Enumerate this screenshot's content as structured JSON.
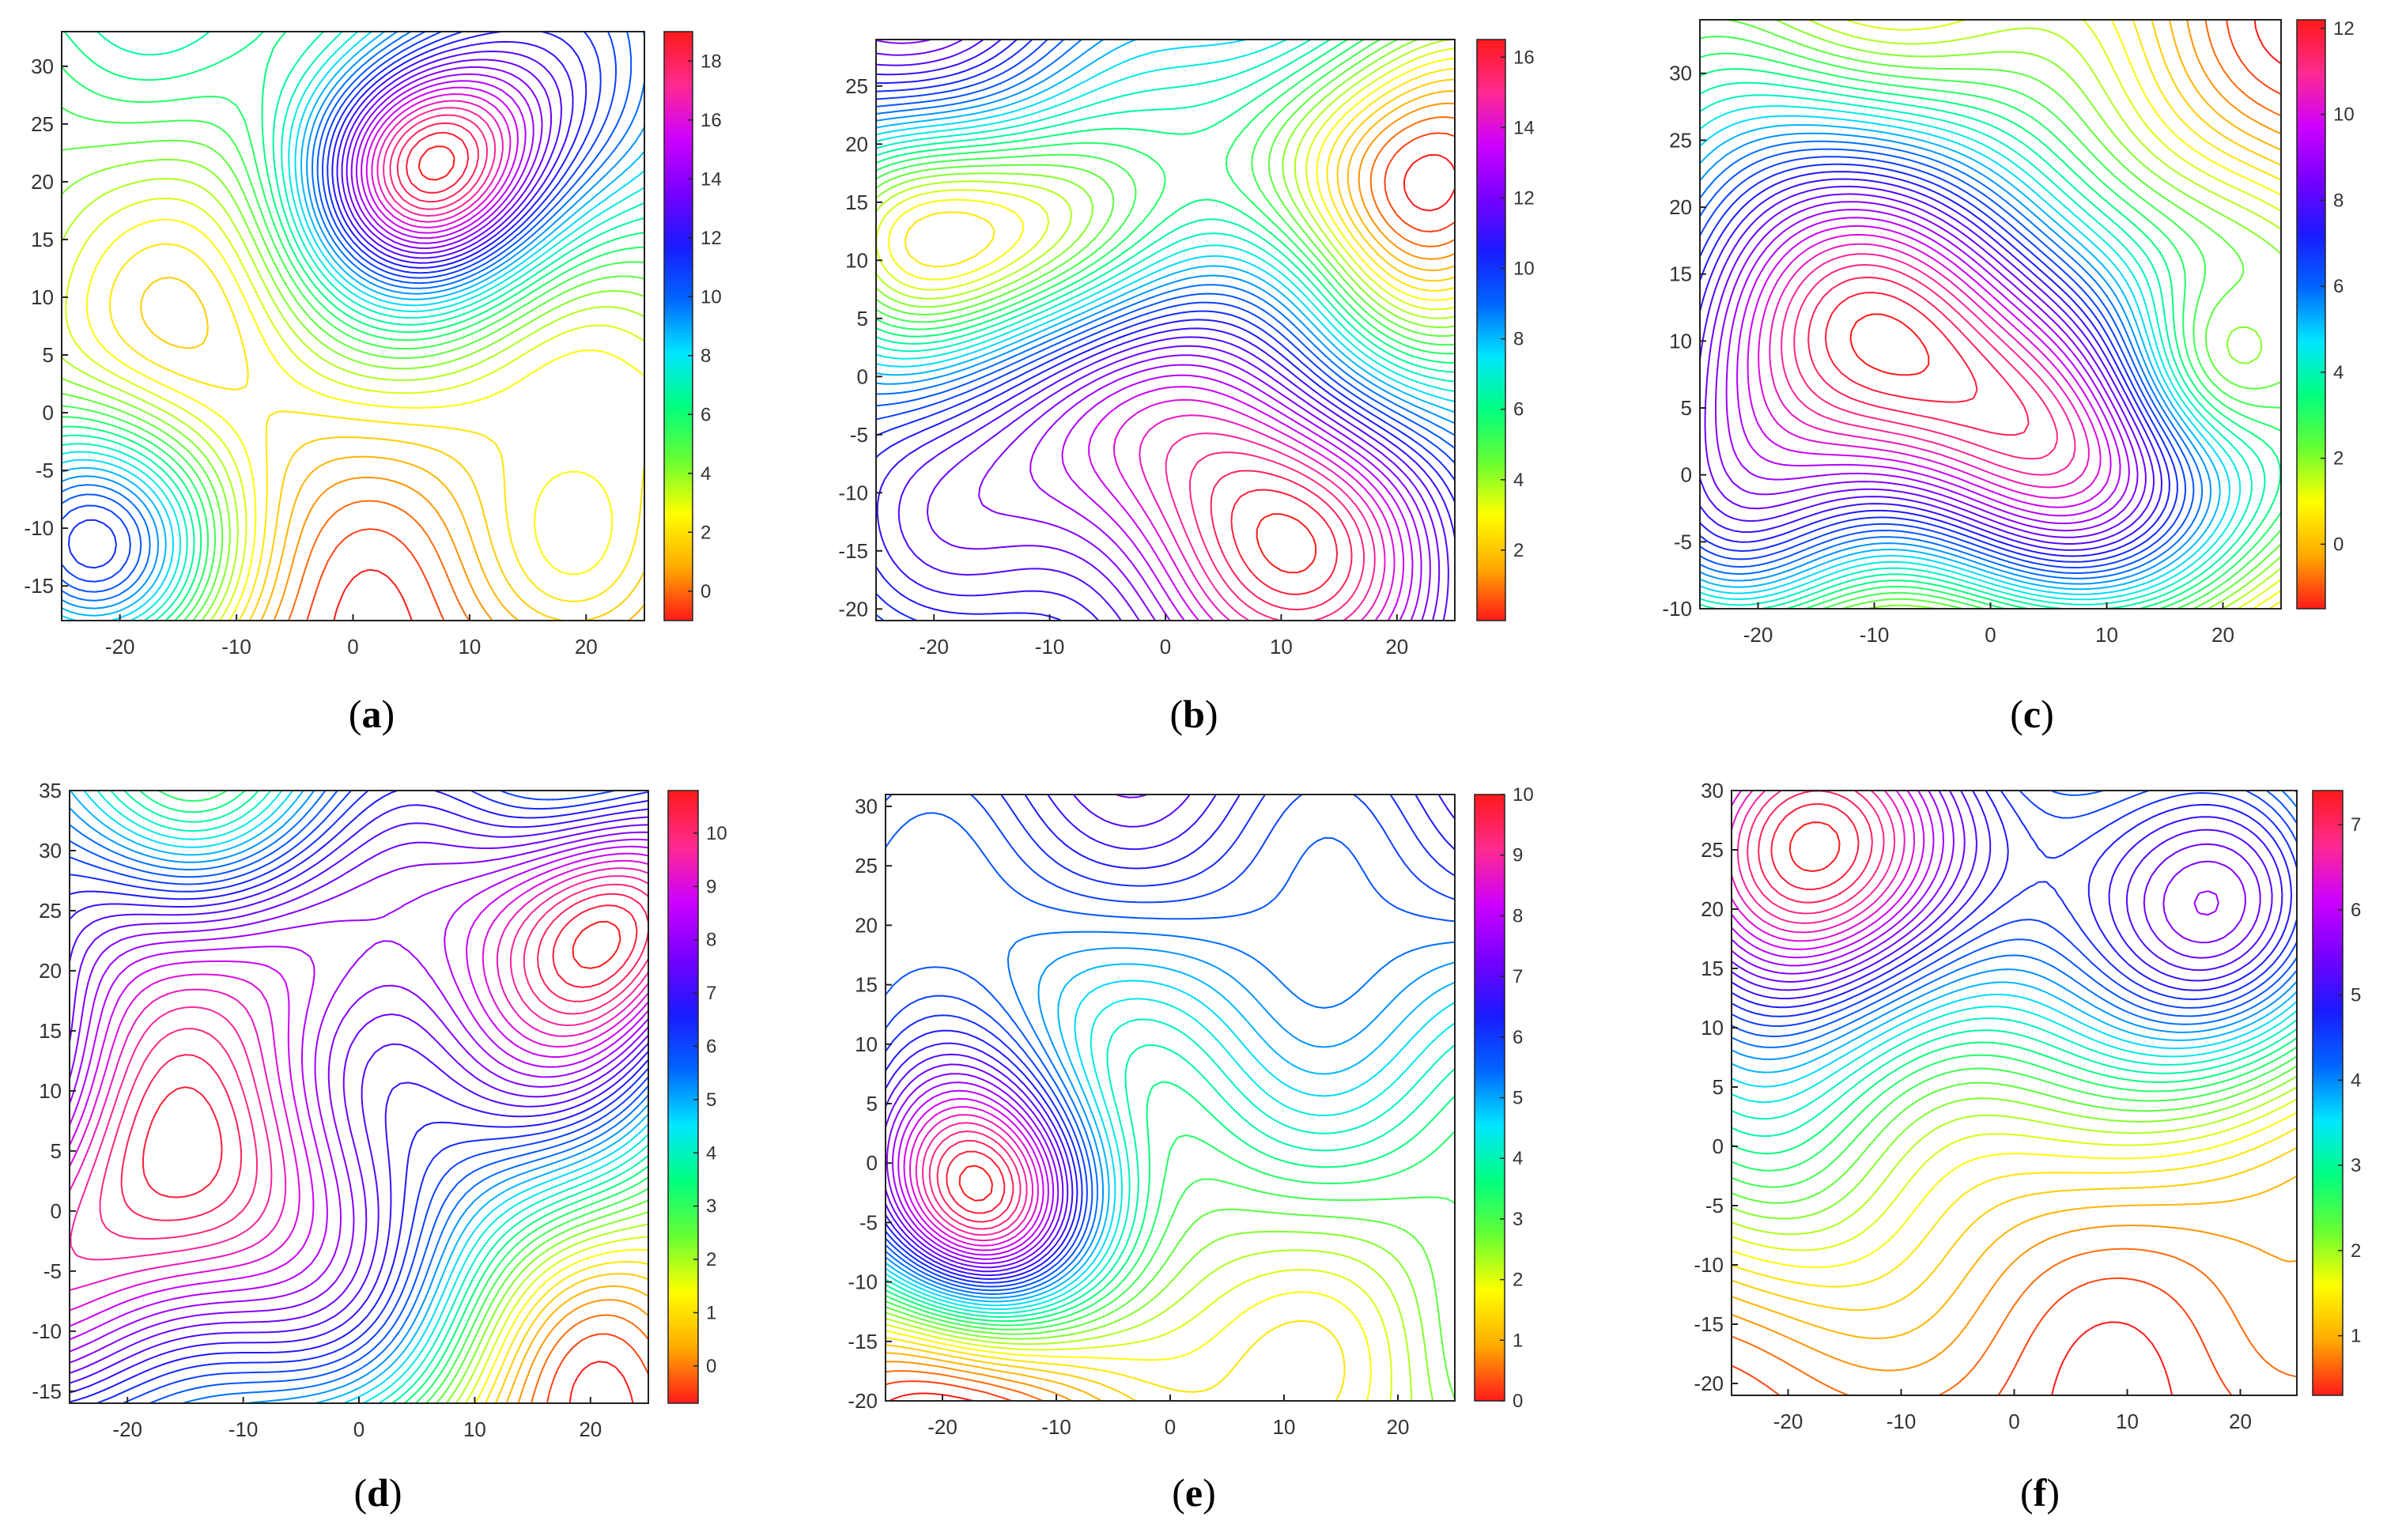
{
  "colors": {
    "axis_frame": "#222222",
    "tick_text": "#333333",
    "background": "#ffffff"
  },
  "colormap": [
    "#ff1a1a",
    "#ffaa00",
    "#ffff00",
    "#66ff33",
    "#00ff80",
    "#00e5ff",
    "#0066ff",
    "#1a1aff",
    "#7700ff",
    "#cc00ff",
    "#ff2a90",
    "#ff1a1a"
  ],
  "chart_data": [
    {
      "type": "contour",
      "caption": "a",
      "xlim": [
        -25,
        25
      ],
      "ylim": [
        -18,
        33
      ],
      "xticks": [
        -20,
        -10,
        0,
        10,
        20
      ],
      "yticks": [
        -15,
        -10,
        -5,
        0,
        5,
        10,
        15,
        20,
        25,
        30
      ],
      "colorbar": {
        "range": [
          -1,
          19
        ],
        "ticks": [
          0,
          2,
          4,
          6,
          8,
          10,
          12,
          14,
          16,
          18
        ]
      },
      "xlabel": "",
      "ylabel": "",
      "title": ""
    },
    {
      "type": "contour",
      "caption": "b",
      "xlim": [
        -25,
        25
      ],
      "ylim": [
        -21,
        29
      ],
      "xticks": [
        -20,
        -10,
        0,
        10,
        20
      ],
      "yticks": [
        -20,
        -15,
        -10,
        -5,
        0,
        5,
        10,
        15,
        20,
        25
      ],
      "colorbar": {
        "range": [
          0,
          16.5
        ],
        "ticks": [
          2,
          4,
          6,
          8,
          10,
          12,
          14,
          16
        ]
      },
      "xlabel": "",
      "ylabel": "",
      "title": ""
    },
    {
      "type": "contour",
      "caption": "c",
      "xlim": [
        -25,
        25
      ],
      "ylim": [
        -10,
        34
      ],
      "xticks": [
        -20,
        -10,
        0,
        10,
        20
      ],
      "yticks": [
        -10,
        -5,
        0,
        5,
        10,
        15,
        20,
        25,
        30
      ],
      "colorbar": {
        "range": [
          -1.5,
          12.2
        ],
        "ticks": [
          0,
          2,
          4,
          6,
          8,
          10,
          12
        ]
      },
      "xlabel": "",
      "ylabel": "",
      "title": ""
    },
    {
      "type": "contour",
      "caption": "d",
      "xlim": [
        -25,
        25
      ],
      "ylim": [
        -16,
        35
      ],
      "xticks": [
        -20,
        -10,
        0,
        10,
        20
      ],
      "yticks": [
        -15,
        -10,
        -5,
        0,
        5,
        10,
        15,
        20,
        25,
        30,
        35
      ],
      "colorbar": {
        "range": [
          -0.7,
          10.8
        ],
        "ticks": [
          0,
          1,
          2,
          3,
          4,
          5,
          6,
          7,
          8,
          9,
          10
        ]
      },
      "xlabel": "",
      "ylabel": "",
      "title": ""
    },
    {
      "type": "contour",
      "caption": "e",
      "xlim": [
        -25,
        25
      ],
      "ylim": [
        -20,
        31
      ],
      "xticks": [
        -20,
        -10,
        0,
        10,
        20
      ],
      "yticks": [
        -20,
        -15,
        -10,
        -5,
        0,
        5,
        10,
        15,
        20,
        25,
        30
      ],
      "colorbar": {
        "range": [
          0,
          10
        ],
        "ticks": [
          0,
          1,
          2,
          3,
          4,
          5,
          6,
          7,
          8,
          9,
          10
        ]
      },
      "xlabel": "",
      "ylabel": "",
      "title": ""
    },
    {
      "type": "contour",
      "caption": "f",
      "xlim": [
        -25,
        25
      ],
      "ylim": [
        -21,
        30
      ],
      "xticks": [
        -20,
        -10,
        0,
        10,
        20
      ],
      "yticks": [
        -20,
        -15,
        -10,
        -5,
        0,
        5,
        10,
        15,
        20,
        25,
        30
      ],
      "colorbar": {
        "range": [
          0.3,
          7.4
        ],
        "ticks": [
          1,
          2,
          3,
          4,
          5,
          6,
          7
        ]
      },
      "xlabel": "",
      "ylabel": "",
      "title": ""
    }
  ]
}
